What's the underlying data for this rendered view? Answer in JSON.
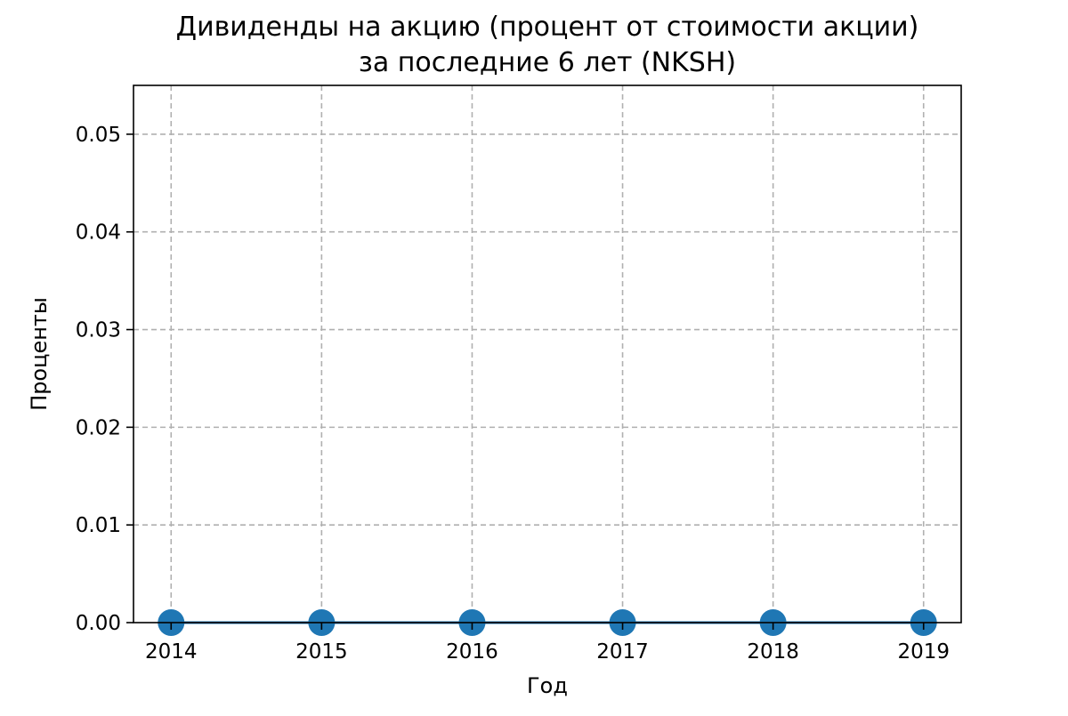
{
  "chart": {
    "title_line1": "Дивиденды на акцию (процент от стоимости акции)",
    "title_line2": "за последние 6 лет (NKSH)",
    "xlabel": "Год",
    "ylabel": "Проценты"
  },
  "chart_data": {
    "type": "line",
    "title": "Дивиденды на акцию (процент от стоимости акции) за последние 6 лет (NKSH)",
    "xlabel": "Год",
    "ylabel": "Проценты",
    "x": [
      "2014",
      "2015",
      "2016",
      "2017",
      "2018",
      "2019"
    ],
    "series": [
      {
        "values": [
          0,
          0,
          0,
          0,
          0,
          0
        ],
        "color": "#1f77b4",
        "marker": "circle"
      }
    ],
    "xlim": [
      2013.75,
      2019.25
    ],
    "ylim": [
      0,
      0.055
    ],
    "yticks": [
      0.0,
      0.01,
      0.02,
      0.03,
      0.04,
      0.05
    ],
    "ytick_labels": [
      "0.00",
      "0.01",
      "0.02",
      "0.03",
      "0.04",
      "0.05"
    ],
    "grid": true,
    "grid_style": "dashed"
  }
}
